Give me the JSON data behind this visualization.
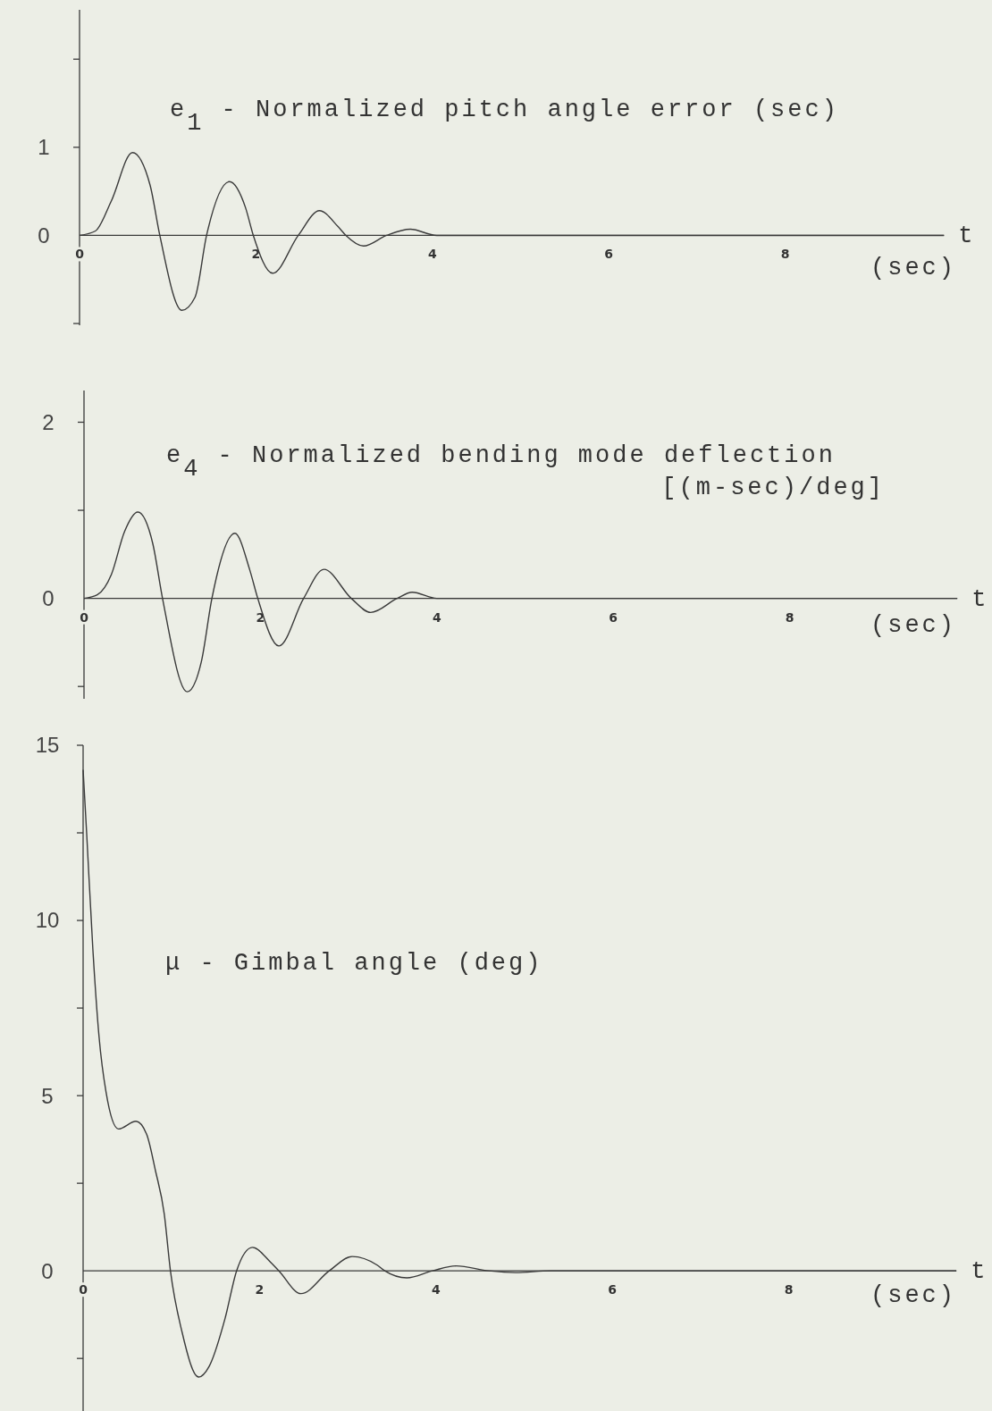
{
  "chart_data": [
    {
      "type": "line",
      "title": "e$_{1}$ - Normalized pitch angle error (sec)",
      "xlabel": "t",
      "annotations": [
        "(sec)"
      ],
      "grid": false,
      "xlim": [
        0,
        9.8
      ],
      "xticks": [
        0,
        2,
        4,
        6,
        8
      ],
      "ylim": [
        -1.02,
        2.56
      ],
      "yticks": [
        {
          "value": -1,
          "label": null
        },
        0,
        1,
        {
          "value": 2,
          "label": null
        }
      ],
      "series": [
        {
          "color": "#3a3a3a",
          "x": [
            0,
            0.18,
            0.36,
            0.6,
            0.8,
            0.91,
            1.16,
            1.31,
            1.44,
            1.7,
            1.88,
            1.97,
            2.19,
            2.48,
            2.72,
            2.93,
            3.02,
            3.22,
            3.48,
            3.75,
            4.05,
            9.8
          ],
          "values": [
            0,
            0.05,
            0.39,
            0.94,
            0.57,
            0,
            -0.85,
            -0.7,
            0,
            0.61,
            0.32,
            0,
            -0.43,
            0,
            0.28,
            0.1,
            0,
            -0.12,
            0,
            0.07,
            0,
            0
          ]
        }
      ]
    },
    {
      "type": "line",
      "title": "e$_{4}$ - Normalized bending mode deflection",
      "subtitle": "[(m-sec)/deg]",
      "xlabel": "t",
      "annotations": [
        "(sec)"
      ],
      "grid": false,
      "xlim": [
        0,
        9.9
      ],
      "xticks": [
        0,
        2,
        4,
        6,
        8
      ],
      "ylim": [
        -1.14,
        2.36
      ],
      "yticks": [
        {
          "value": -1,
          "label": null
        },
        0,
        {
          "value": 1,
          "label": null
        },
        2
      ],
      "series": [
        {
          "color": "#3a3a3a",
          "x": [
            0,
            0.15,
            0.31,
            0.46,
            0.61,
            0.78,
            0.89,
            1.17,
            1.33,
            1.45,
            1.71,
            1.88,
            1.97,
            2.21,
            2.49,
            2.72,
            3.03,
            3.25,
            3.55,
            3.72,
            4.0,
            9.9
          ],
          "values": [
            0,
            0.04,
            0.27,
            0.76,
            0.98,
            0.62,
            0,
            -1.06,
            -0.72,
            0,
            0.74,
            0.32,
            0,
            -0.54,
            0,
            0.33,
            0,
            -0.16,
            0,
            0.07,
            0,
            0
          ]
        }
      ]
    },
    {
      "type": "line",
      "title": "μ - Gimbal angle (deg)",
      "xlabel": "t",
      "annotations": [
        "(sec)"
      ],
      "grid": false,
      "xlim": [
        0,
        9.9
      ],
      "xticks": [
        0,
        2,
        4,
        6,
        8
      ],
      "ylim": [
        -4,
        15
      ],
      "yticks": [
        {
          "value": -2.5,
          "label": null
        },
        0,
        {
          "value": 2.5,
          "label": null
        },
        5,
        {
          "value": 7.5,
          "label": null
        },
        10,
        {
          "value": 12.5,
          "label": null
        },
        15
      ],
      "series": [
        {
          "color": "#3a3a3a",
          "x": [
            0,
            0.04,
            0.11,
            0.18,
            0.26,
            0.4,
            0.6,
            0.72,
            0.82,
            0.92,
            0.99,
            1.12,
            1.31,
            1.43,
            1.61,
            1.74,
            1.92,
            2.12,
            2.22,
            2.47,
            2.79,
            3.05,
            3.33,
            3.42,
            3.67,
            3.96,
            4.23,
            4.6,
            4.9,
            5.3,
            9.9
          ],
          "values": [
            14.3,
            12.5,
            9.2,
            6.7,
            5.1,
            4.05,
            4.27,
            3.9,
            2.86,
            1.62,
            0,
            -1.73,
            -3.03,
            -2.72,
            -1.35,
            0,
            0.67,
            0.26,
            0,
            -0.65,
            0,
            0.41,
            0.17,
            0,
            -0.2,
            0,
            0.14,
            0,
            -0.05,
            0,
            0
          ]
        }
      ]
    }
  ]
}
